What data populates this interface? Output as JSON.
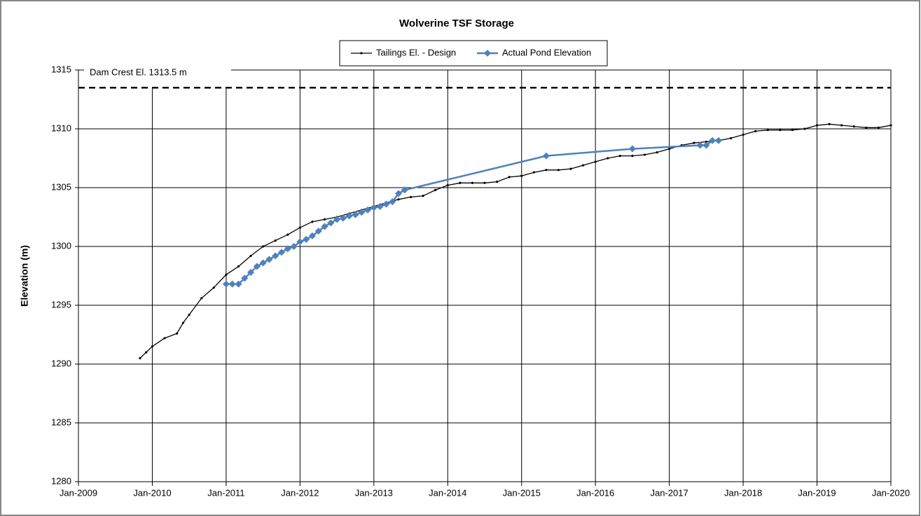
{
  "chart_data": {
    "type": "line",
    "title": "Wolverine TSF Storage",
    "y_label": "Elevation (m)",
    "xlim": [
      "2009-01",
      "2020-01"
    ],
    "xticks": [
      {
        "value": "2009-01",
        "label": "Jan-2009"
      },
      {
        "value": "2010-01",
        "label": "Jan-2010"
      },
      {
        "value": "2011-01",
        "label": "Jan-2011"
      },
      {
        "value": "2012-01",
        "label": "Jan-2012"
      },
      {
        "value": "2013-01",
        "label": "Jan-2013"
      },
      {
        "value": "2014-01",
        "label": "Jan-2014"
      },
      {
        "value": "2015-01",
        "label": "Jan-2015"
      },
      {
        "value": "2016-01",
        "label": "Jan-2016"
      },
      {
        "value": "2017-01",
        "label": "Jan-2017"
      },
      {
        "value": "2018-01",
        "label": "Jan-2018"
      },
      {
        "value": "2019-01",
        "label": "Jan-2019"
      },
      {
        "value": "2020-01",
        "label": "Jan-2020"
      }
    ],
    "ylim": [
      1280,
      1315
    ],
    "yticks": [
      1280,
      1285,
      1290,
      1295,
      1300,
      1305,
      1310,
      1315
    ],
    "grid": true,
    "legend": "top",
    "reference_line": {
      "value": 1313.5,
      "label": "Dam Crest El. 1313.5 m"
    },
    "series": [
      {
        "name": "Tailings El. - Design",
        "color": "#000000",
        "marker": "dot",
        "x": [
          "2009-11",
          "2009-12",
          "2010-01",
          "2010-03",
          "2010-05",
          "2010-06",
          "2010-07",
          "2010-09",
          "2010-11",
          "2011-01",
          "2011-03",
          "2011-05",
          "2011-07",
          "2011-09",
          "2011-11",
          "2012-01",
          "2012-03",
          "2012-05",
          "2012-07",
          "2012-09",
          "2012-11",
          "2013-01",
          "2013-03",
          "2013-05",
          "2013-07",
          "2013-09",
          "2013-11",
          "2014-01",
          "2014-03",
          "2014-05",
          "2014-07",
          "2014-09",
          "2014-11",
          "2015-01",
          "2015-03",
          "2015-05",
          "2015-07",
          "2015-09",
          "2015-11",
          "2016-01",
          "2016-03",
          "2016-05",
          "2016-07",
          "2016-09",
          "2016-11",
          "2017-01",
          "2017-03",
          "2017-05",
          "2017-07",
          "2017-09",
          "2017-11",
          "2018-01",
          "2018-03",
          "2018-05",
          "2018-07",
          "2018-09",
          "2018-11",
          "2019-01",
          "2019-03",
          "2019-05",
          "2019-07",
          "2019-09",
          "2019-11",
          "2020-01"
        ],
        "values": [
          1290.5,
          1291.0,
          1291.5,
          1292.2,
          1292.6,
          1293.5,
          1294.2,
          1295.6,
          1296.5,
          1297.6,
          1298.3,
          1299.2,
          1300.0,
          1300.5,
          1301.0,
          1301.6,
          1302.1,
          1302.3,
          1302.5,
          1302.8,
          1303.1,
          1303.4,
          1303.7,
          1304.0,
          1304.2,
          1304.3,
          1304.8,
          1305.2,
          1305.4,
          1305.4,
          1305.4,
          1305.5,
          1305.9,
          1306.0,
          1306.3,
          1306.5,
          1306.5,
          1306.6,
          1306.9,
          1307.2,
          1307.5,
          1307.7,
          1307.7,
          1307.8,
          1308.0,
          1308.3,
          1308.6,
          1308.8,
          1308.9,
          1309.0,
          1309.2,
          1309.5,
          1309.8,
          1309.9,
          1309.9,
          1309.9,
          1310.0,
          1310.3,
          1310.4,
          1310.3,
          1310.2,
          1310.1,
          1310.1,
          1310.3
        ]
      },
      {
        "name": "Actual Pond Elevation",
        "color": "#4f81bd",
        "marker": "diamond",
        "x": [
          "2011-01",
          "2011-02",
          "2011-03",
          "2011-04",
          "2011-05",
          "2011-06",
          "2011-07",
          "2011-08",
          "2011-09",
          "2011-10",
          "2011-11",
          "2011-12",
          "2012-01",
          "2012-02",
          "2012-03",
          "2012-04",
          "2012-05",
          "2012-06",
          "2012-07",
          "2012-08",
          "2012-09",
          "2012-10",
          "2012-11",
          "2012-12",
          "2013-01",
          "2013-02",
          "2013-03",
          "2013-04",
          "2013-05",
          "2013-06",
          "2015-05",
          "2016-07",
          "2017-06",
          "2017-07",
          "2017-08",
          "2017-09"
        ],
        "values": [
          1296.8,
          1296.8,
          1296.8,
          1297.3,
          1297.8,
          1298.3,
          1298.6,
          1298.9,
          1299.2,
          1299.5,
          1299.8,
          1300.0,
          1300.4,
          1300.6,
          1300.9,
          1301.3,
          1301.7,
          1302.0,
          1302.3,
          1302.4,
          1302.6,
          1302.7,
          1302.9,
          1303.1,
          1303.3,
          1303.4,
          1303.6,
          1303.8,
          1304.5,
          1304.8,
          1307.7,
          1308.3,
          1308.6,
          1308.6,
          1309.0,
          1309.0
        ]
      }
    ]
  }
}
